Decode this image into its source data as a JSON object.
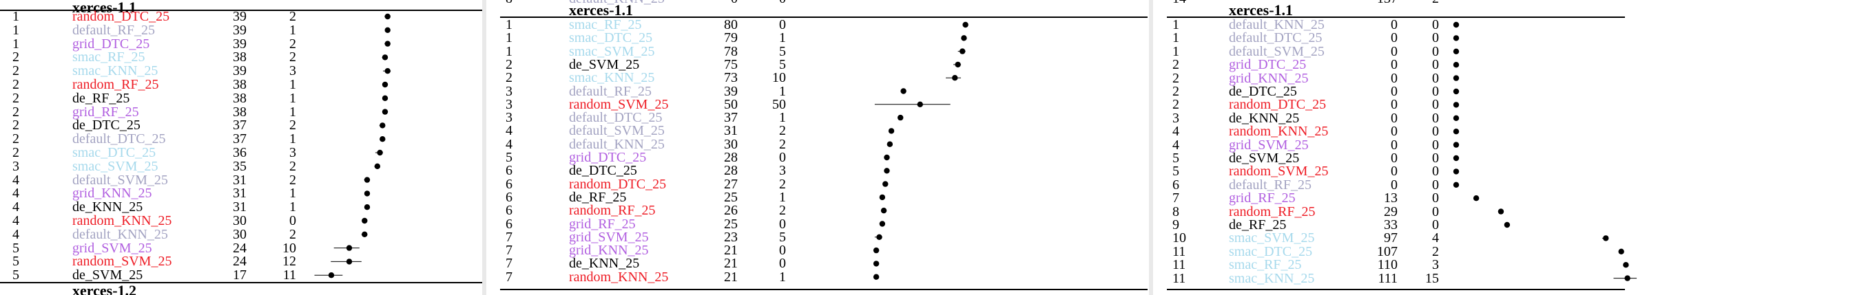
{
  "colors": {
    "random": "#ee1c25",
    "default": "#a3a3c2",
    "grid": "#b15fe0",
    "smac": "#a6d9ec",
    "de": "#000000"
  },
  "panels": [
    {
      "title": "xerces-1.1",
      "next_title": "xerces-1.2",
      "rows": [
        {
          "rank": "1",
          "name": "random_DTC_25",
          "family": "random",
          "median": "39",
          "iqr": "2"
        },
        {
          "rank": "1",
          "name": "default_RF_25",
          "family": "default",
          "median": "39",
          "iqr": "1"
        },
        {
          "rank": "1",
          "name": "grid_DTC_25",
          "family": "grid",
          "median": "39",
          "iqr": "2"
        },
        {
          "rank": "2",
          "name": "smac_RF_25",
          "family": "smac",
          "median": "38",
          "iqr": "2"
        },
        {
          "rank": "2",
          "name": "smac_KNN_25",
          "family": "smac",
          "median": "39",
          "iqr": "3"
        },
        {
          "rank": "2",
          "name": "random_RF_25",
          "family": "random",
          "median": "38",
          "iqr": "1"
        },
        {
          "rank": "2",
          "name": "de_RF_25",
          "family": "de",
          "median": "38",
          "iqr": "1"
        },
        {
          "rank": "2",
          "name": "grid_RF_25",
          "family": "grid",
          "median": "38",
          "iqr": "1"
        },
        {
          "rank": "2",
          "name": "de_DTC_25",
          "family": "de",
          "median": "37",
          "iqr": "2"
        },
        {
          "rank": "2",
          "name": "default_DTC_25",
          "family": "default",
          "median": "37",
          "iqr": "1"
        },
        {
          "rank": "2",
          "name": "smac_DTC_25",
          "family": "smac",
          "median": "36",
          "iqr": "3"
        },
        {
          "rank": "3",
          "name": "smac_SVM_25",
          "family": "smac",
          "median": "35",
          "iqr": "2"
        },
        {
          "rank": "4",
          "name": "default_SVM_25",
          "family": "default",
          "median": "31",
          "iqr": "2"
        },
        {
          "rank": "4",
          "name": "grid_KNN_25",
          "family": "grid",
          "median": "31",
          "iqr": "1"
        },
        {
          "rank": "4",
          "name": "de_KNN_25",
          "family": "de",
          "median": "31",
          "iqr": "1"
        },
        {
          "rank": "4",
          "name": "random_KNN_25",
          "family": "random",
          "median": "30",
          "iqr": "0"
        },
        {
          "rank": "4",
          "name": "default_KNN_25",
          "family": "default",
          "median": "30",
          "iqr": "2"
        },
        {
          "rank": "5",
          "name": "grid_SVM_25",
          "family": "grid",
          "median": "24",
          "iqr": "10"
        },
        {
          "rank": "5",
          "name": "random_SVM_25",
          "family": "random",
          "median": "24",
          "iqr": "12"
        },
        {
          "rank": "5",
          "name": "de_SVM_25",
          "family": "de",
          "median": "17",
          "iqr": "11"
        }
      ]
    },
    {
      "title": "xerces-1.1",
      "top_cut": {
        "rank": "8",
        "name": "default_KNN_25",
        "median": "0",
        "iqr": "0"
      },
      "rows": [
        {
          "rank": "1",
          "name": "smac_RF_25",
          "family": "smac",
          "median": "80",
          "iqr": "0"
        },
        {
          "rank": "1",
          "name": "smac_DTC_25",
          "family": "smac",
          "median": "79",
          "iqr": "1"
        },
        {
          "rank": "1",
          "name": "smac_SVM_25",
          "family": "smac",
          "median": "78",
          "iqr": "5"
        },
        {
          "rank": "2",
          "name": "de_SVM_25",
          "family": "de",
          "median": "75",
          "iqr": "5"
        },
        {
          "rank": "2",
          "name": "smac_KNN_25",
          "family": "smac",
          "median": "73",
          "iqr": "10"
        },
        {
          "rank": "3",
          "name": "default_RF_25",
          "family": "default",
          "median": "39",
          "iqr": "1"
        },
        {
          "rank": "3",
          "name": "random_SVM_25",
          "family": "random",
          "median": "50",
          "iqr": "50"
        },
        {
          "rank": "3",
          "name": "default_DTC_25",
          "family": "default",
          "median": "37",
          "iqr": "1"
        },
        {
          "rank": "4",
          "name": "default_SVM_25",
          "family": "default",
          "median": "31",
          "iqr": "2"
        },
        {
          "rank": "4",
          "name": "default_KNN_25",
          "family": "default",
          "median": "30",
          "iqr": "2"
        },
        {
          "rank": "5",
          "name": "grid_DTC_25",
          "family": "grid",
          "median": "28",
          "iqr": "0"
        },
        {
          "rank": "6",
          "name": "de_DTC_25",
          "family": "de",
          "median": "28",
          "iqr": "3"
        },
        {
          "rank": "6",
          "name": "random_DTC_25",
          "family": "random",
          "median": "27",
          "iqr": "2"
        },
        {
          "rank": "6",
          "name": "de_RF_25",
          "family": "de",
          "median": "25",
          "iqr": "1"
        },
        {
          "rank": "6",
          "name": "random_RF_25",
          "family": "random",
          "median": "26",
          "iqr": "2"
        },
        {
          "rank": "6",
          "name": "grid_RF_25",
          "family": "grid",
          "median": "25",
          "iqr": "0"
        },
        {
          "rank": "7",
          "name": "grid_SVM_25",
          "family": "grid",
          "median": "23",
          "iqr": "5"
        },
        {
          "rank": "7",
          "name": "grid_KNN_25",
          "family": "grid",
          "median": "21",
          "iqr": "0"
        },
        {
          "rank": "7",
          "name": "de_KNN_25",
          "family": "de",
          "median": "21",
          "iqr": "0"
        },
        {
          "rank": "7",
          "name": "random_KNN_25",
          "family": "random",
          "median": "21",
          "iqr": "1"
        }
      ]
    },
    {
      "title": "xerces-1.1",
      "top_cut": {
        "rank": "14",
        "name": "",
        "median": "137",
        "iqr": "2"
      },
      "rows": [
        {
          "rank": "1",
          "name": "default_KNN_25",
          "family": "default",
          "median": "0",
          "iqr": "0"
        },
        {
          "rank": "1",
          "name": "default_DTC_25",
          "family": "default",
          "median": "0",
          "iqr": "0"
        },
        {
          "rank": "1",
          "name": "default_SVM_25",
          "family": "default",
          "median": "0",
          "iqr": "0"
        },
        {
          "rank": "2",
          "name": "grid_DTC_25",
          "family": "grid",
          "median": "0",
          "iqr": "0"
        },
        {
          "rank": "2",
          "name": "grid_KNN_25",
          "family": "grid",
          "median": "0",
          "iqr": "0"
        },
        {
          "rank": "2",
          "name": "de_DTC_25",
          "family": "de",
          "median": "0",
          "iqr": "0"
        },
        {
          "rank": "2",
          "name": "random_DTC_25",
          "family": "random",
          "median": "0",
          "iqr": "0"
        },
        {
          "rank": "3",
          "name": "de_KNN_25",
          "family": "de",
          "median": "0",
          "iqr": "0"
        },
        {
          "rank": "4",
          "name": "random_KNN_25",
          "family": "random",
          "median": "0",
          "iqr": "0"
        },
        {
          "rank": "4",
          "name": "grid_SVM_25",
          "family": "grid",
          "median": "0",
          "iqr": "0"
        },
        {
          "rank": "5",
          "name": "de_SVM_25",
          "family": "de",
          "median": "0",
          "iqr": "0"
        },
        {
          "rank": "5",
          "name": "random_SVM_25",
          "family": "random",
          "median": "0",
          "iqr": "0"
        },
        {
          "rank": "6",
          "name": "default_RF_25",
          "family": "default",
          "median": "0",
          "iqr": "0"
        },
        {
          "rank": "7",
          "name": "grid_RF_25",
          "family": "grid",
          "median": "13",
          "iqr": "0"
        },
        {
          "rank": "8",
          "name": "random_RF_25",
          "family": "random",
          "median": "29",
          "iqr": "0"
        },
        {
          "rank": "9",
          "name": "de_RF_25",
          "family": "de",
          "median": "33",
          "iqr": "0"
        },
        {
          "rank": "10",
          "name": "smac_SVM_25",
          "family": "smac",
          "median": "97",
          "iqr": "4"
        },
        {
          "rank": "11",
          "name": "smac_DTC_25",
          "family": "smac",
          "median": "107",
          "iqr": "2"
        },
        {
          "rank": "11",
          "name": "smac_RF_25",
          "family": "smac",
          "median": "110",
          "iqr": "3"
        },
        {
          "rank": "11",
          "name": "smac_KNN_25",
          "family": "smac",
          "median": "111",
          "iqr": "15"
        }
      ]
    }
  ]
}
